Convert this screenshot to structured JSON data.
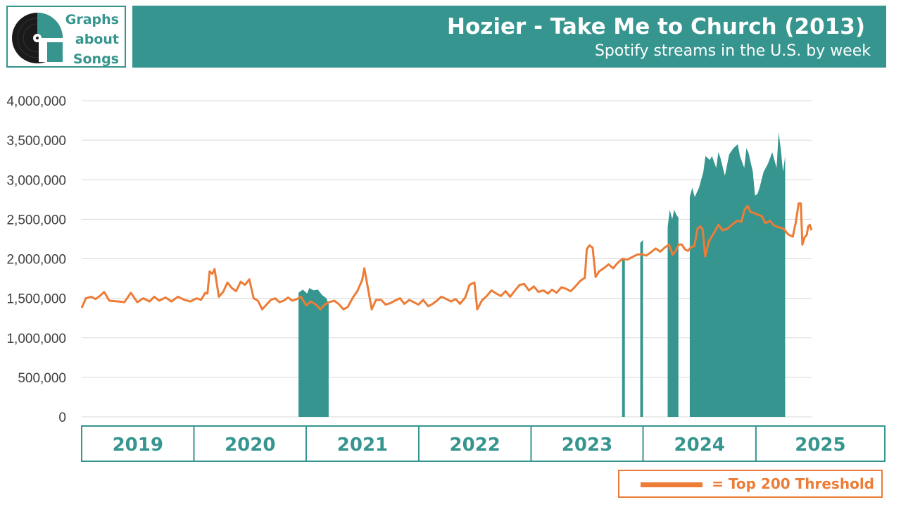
{
  "header": {
    "logo_lines": [
      "Graphs",
      "about",
      "Songs"
    ],
    "title": "Hozier - Take Me to Church (2013)",
    "subtitle": "Spotify streams in the U.S. by week"
  },
  "legend": {
    "label": "= Top 200 Threshold"
  },
  "colors": {
    "teal": "#36958e",
    "orange": "#ec7c36",
    "grid": "#d9d9d9"
  },
  "chart_data": {
    "type": "area",
    "ylim": [
      0,
      4000000
    ],
    "y_ticks": [
      "0",
      "500,000",
      "1,000,000",
      "1,500,000",
      "2,000,000",
      "2,500,000",
      "3,000,000",
      "3,500,000",
      "4,000,000"
    ],
    "y_tick_values": [
      0,
      500000,
      1000000,
      1500000,
      2000000,
      2500000,
      3000000,
      3500000,
      4000000
    ],
    "years": [
      "2019",
      "2020",
      "2021",
      "2022",
      "2023",
      "2024",
      "2025"
    ],
    "year_boundaries": [
      "2019-01-01",
      "2020-01-01",
      "2020-12-31",
      "2022-01-01",
      "2023-01-01",
      "2023-12-31",
      "2025-01-01",
      "2025-07-01"
    ],
    "x_range": [
      "2019-01-01",
      "2025-07-01"
    ],
    "series": [
      {
        "name": "",
        "style": "area",
        "segments": [
          [
            [
              "2020-12-06",
              1570000
            ],
            [
              "2020-12-20",
              1610000
            ],
            [
              "2021-01-03",
              1560000
            ],
            [
              "2021-01-10",
              1630000
            ],
            [
              "2021-01-24",
              1600000
            ],
            [
              "2021-02-07",
              1610000
            ],
            [
              "2021-02-21",
              1540000
            ],
            [
              "2021-03-07",
              1500000
            ],
            [
              "2021-03-14",
              1420000
            ]
          ],
          [
            [
              "2023-10-24",
              2000000
            ],
            [
              "2023-11-02",
              2000000
            ]
          ],
          [
            [
              "2023-12-22",
              2200000
            ],
            [
              "2023-12-31",
              2240000
            ]
          ],
          [
            [
              "2024-03-20",
              2400000
            ],
            [
              "2024-03-27",
              2620000
            ],
            [
              "2024-04-04",
              2500000
            ],
            [
              "2024-04-10",
              2620000
            ],
            [
              "2024-04-17",
              2560000
            ],
            [
              "2024-04-24",
              2520000
            ]
          ],
          [
            [
              "2024-05-31",
              2780000
            ],
            [
              "2024-06-08",
              2900000
            ],
            [
              "2024-06-16",
              2780000
            ],
            [
              "2024-06-30",
              2900000
            ],
            [
              "2024-07-14",
              3100000
            ],
            [
              "2024-07-21",
              3300000
            ],
            [
              "2024-08-04",
              3250000
            ],
            [
              "2024-08-11",
              3300000
            ],
            [
              "2024-08-25",
              3150000
            ],
            [
              "2024-09-01",
              3350000
            ],
            [
              "2024-09-08",
              3270000
            ],
            [
              "2024-09-22",
              3050000
            ],
            [
              "2024-10-06",
              3320000
            ],
            [
              "2024-10-20",
              3400000
            ],
            [
              "2024-11-03",
              3450000
            ],
            [
              "2024-11-10",
              3300000
            ],
            [
              "2024-11-24",
              3150000
            ],
            [
              "2024-12-01",
              3400000
            ],
            [
              "2024-12-08",
              3340000
            ],
            [
              "2024-12-22",
              3100000
            ],
            [
              "2024-12-29",
              2800000
            ],
            [
              "2025-01-06",
              2820000
            ],
            [
              "2025-01-13",
              2900000
            ],
            [
              "2025-01-26",
              3100000
            ],
            [
              "2025-02-09",
              3200000
            ],
            [
              "2025-02-23",
              3350000
            ],
            [
              "2025-03-09",
              3150000
            ],
            [
              "2025-03-16",
              3600000
            ],
            [
              "2025-03-23",
              3380000
            ],
            [
              "2025-03-30",
              3100000
            ],
            [
              "2025-04-06",
              3300000
            ]
          ]
        ]
      },
      {
        "name": "Top 200 Threshold",
        "style": "line",
        "points": [
          [
            "2019-01-01",
            1380000
          ],
          [
            "2019-01-15",
            1500000
          ],
          [
            "2019-02-01",
            1520000
          ],
          [
            "2019-02-15",
            1490000
          ],
          [
            "2019-03-01",
            1530000
          ],
          [
            "2019-03-15",
            1580000
          ],
          [
            "2019-04-01",
            1470000
          ],
          [
            "2019-05-01",
            1460000
          ],
          [
            "2019-05-20",
            1450000
          ],
          [
            "2019-06-10",
            1570000
          ],
          [
            "2019-07-01",
            1450000
          ],
          [
            "2019-07-20",
            1500000
          ],
          [
            "2019-08-10",
            1460000
          ],
          [
            "2019-08-25",
            1520000
          ],
          [
            "2019-09-10",
            1470000
          ],
          [
            "2019-10-01",
            1510000
          ],
          [
            "2019-10-20",
            1460000
          ],
          [
            "2019-11-10",
            1520000
          ],
          [
            "2019-12-01",
            1480000
          ],
          [
            "2019-12-20",
            1460000
          ],
          [
            "2020-01-10",
            1500000
          ],
          [
            "2020-01-24",
            1480000
          ],
          [
            "2020-02-07",
            1570000
          ],
          [
            "2020-02-14",
            1560000
          ],
          [
            "2020-02-21",
            1840000
          ],
          [
            "2020-03-01",
            1810000
          ],
          [
            "2020-03-08",
            1870000
          ],
          [
            "2020-03-22",
            1520000
          ],
          [
            "2020-04-05",
            1580000
          ],
          [
            "2020-04-19",
            1700000
          ],
          [
            "2020-05-03",
            1630000
          ],
          [
            "2020-05-17",
            1590000
          ],
          [
            "2020-06-01",
            1710000
          ],
          [
            "2020-06-15",
            1670000
          ],
          [
            "2020-06-29",
            1740000
          ],
          [
            "2020-07-13",
            1500000
          ],
          [
            "2020-07-27",
            1470000
          ],
          [
            "2020-08-10",
            1360000
          ],
          [
            "2020-08-24",
            1420000
          ],
          [
            "2020-09-07",
            1480000
          ],
          [
            "2020-09-21",
            1500000
          ],
          [
            "2020-10-05",
            1450000
          ],
          [
            "2020-10-19",
            1470000
          ],
          [
            "2020-11-02",
            1510000
          ],
          [
            "2020-11-16",
            1470000
          ],
          [
            "2020-12-01",
            1490000
          ],
          [
            "2020-12-14",
            1520000
          ],
          [
            "2020-12-31",
            1410000
          ],
          [
            "2021-01-15",
            1460000
          ],
          [
            "2021-02-01",
            1420000
          ],
          [
            "2021-02-15",
            1360000
          ],
          [
            "2021-03-01",
            1420000
          ],
          [
            "2021-03-15",
            1450000
          ],
          [
            "2021-04-01",
            1470000
          ],
          [
            "2021-04-15",
            1430000
          ],
          [
            "2021-05-01",
            1360000
          ],
          [
            "2021-05-15",
            1390000
          ],
          [
            "2021-06-01",
            1510000
          ],
          [
            "2021-06-15",
            1590000
          ],
          [
            "2021-07-01",
            1730000
          ],
          [
            "2021-07-08",
            1880000
          ],
          [
            "2021-07-22",
            1580000
          ],
          [
            "2021-08-01",
            1360000
          ],
          [
            "2021-08-15",
            1480000
          ],
          [
            "2021-09-01",
            1480000
          ],
          [
            "2021-09-15",
            1420000
          ],
          [
            "2021-10-01",
            1440000
          ],
          [
            "2021-10-15",
            1470000
          ],
          [
            "2021-11-01",
            1500000
          ],
          [
            "2021-11-15",
            1430000
          ],
          [
            "2021-12-01",
            1480000
          ],
          [
            "2021-12-31",
            1420000
          ],
          [
            "2022-01-15",
            1480000
          ],
          [
            "2022-02-01",
            1400000
          ],
          [
            "2022-02-15",
            1430000
          ],
          [
            "2022-03-01",
            1470000
          ],
          [
            "2022-03-15",
            1520000
          ],
          [
            "2022-04-01",
            1490000
          ],
          [
            "2022-04-15",
            1460000
          ],
          [
            "2022-05-01",
            1490000
          ],
          [
            "2022-05-15",
            1430000
          ],
          [
            "2022-06-01",
            1510000
          ],
          [
            "2022-06-15",
            1670000
          ],
          [
            "2022-07-01",
            1700000
          ],
          [
            "2022-07-10",
            1360000
          ],
          [
            "2022-07-25",
            1470000
          ],
          [
            "2022-08-10",
            1530000
          ],
          [
            "2022-08-25",
            1600000
          ],
          [
            "2022-09-10",
            1560000
          ],
          [
            "2022-09-25",
            1530000
          ],
          [
            "2022-10-10",
            1590000
          ],
          [
            "2022-10-25",
            1520000
          ],
          [
            "2022-11-10",
            1600000
          ],
          [
            "2022-11-25",
            1670000
          ],
          [
            "2022-12-10",
            1680000
          ],
          [
            "2022-12-25",
            1600000
          ],
          [
            "2023-01-10",
            1650000
          ],
          [
            "2023-01-25",
            1580000
          ],
          [
            "2023-02-10",
            1600000
          ],
          [
            "2023-02-25",
            1560000
          ],
          [
            "2023-03-10",
            1610000
          ],
          [
            "2023-03-25",
            1570000
          ],
          [
            "2023-04-10",
            1640000
          ],
          [
            "2023-04-25",
            1620000
          ],
          [
            "2023-05-10",
            1590000
          ],
          [
            "2023-05-25",
            1650000
          ],
          [
            "2023-06-10",
            1720000
          ],
          [
            "2023-06-25",
            1760000
          ],
          [
            "2023-07-01",
            2120000
          ],
          [
            "2023-07-10",
            2170000
          ],
          [
            "2023-07-20",
            2140000
          ],
          [
            "2023-07-30",
            1770000
          ],
          [
            "2023-08-10",
            1840000
          ],
          [
            "2023-08-25",
            1880000
          ],
          [
            "2023-09-10",
            1930000
          ],
          [
            "2023-09-25",
            1880000
          ],
          [
            "2023-10-10",
            1950000
          ],
          [
            "2023-10-25",
            2000000
          ],
          [
            "2023-11-10",
            1990000
          ],
          [
            "2023-11-25",
            2020000
          ],
          [
            "2023-12-10",
            2050000
          ],
          [
            "2023-12-25",
            2060000
          ],
          [
            "2024-01-10",
            2040000
          ],
          [
            "2024-01-25",
            2080000
          ],
          [
            "2024-02-10",
            2130000
          ],
          [
            "2024-02-25",
            2090000
          ],
          [
            "2024-03-10",
            2140000
          ],
          [
            "2024-03-25",
            2180000
          ],
          [
            "2024-04-05",
            2050000
          ],
          [
            "2024-04-15",
            2100000
          ],
          [
            "2024-04-25",
            2180000
          ],
          [
            "2024-05-05",
            2180000
          ],
          [
            "2024-05-15",
            2120000
          ],
          [
            "2024-05-25",
            2100000
          ],
          [
            "2024-06-05",
            2150000
          ],
          [
            "2024-06-15",
            2160000
          ],
          [
            "2024-06-25",
            2380000
          ],
          [
            "2024-07-05",
            2410000
          ],
          [
            "2024-07-12",
            2370000
          ],
          [
            "2024-07-20",
            2030000
          ],
          [
            "2024-08-01",
            2220000
          ],
          [
            "2024-08-15",
            2310000
          ],
          [
            "2024-09-01",
            2430000
          ],
          [
            "2024-09-15",
            2360000
          ],
          [
            "2024-10-01",
            2380000
          ],
          [
            "2024-10-15",
            2430000
          ],
          [
            "2024-11-01",
            2480000
          ],
          [
            "2024-11-15",
            2470000
          ],
          [
            "2024-11-25",
            2620000
          ],
          [
            "2024-12-05",
            2670000
          ],
          [
            "2024-12-15",
            2590000
          ],
          [
            "2024-12-25",
            2580000
          ],
          [
            "2025-01-05",
            2560000
          ],
          [
            "2025-01-20",
            2540000
          ],
          [
            "2025-02-01",
            2450000
          ],
          [
            "2025-02-15",
            2480000
          ],
          [
            "2025-03-01",
            2420000
          ],
          [
            "2025-03-15",
            2400000
          ],
          [
            "2025-04-01",
            2380000
          ],
          [
            "2025-04-15",
            2310000
          ],
          [
            "2025-05-01",
            2280000
          ],
          [
            "2025-05-10",
            2450000
          ],
          [
            "2025-05-20",
            2700000
          ],
          [
            "2025-05-27",
            2700000
          ],
          [
            "2025-06-01",
            2180000
          ],
          [
            "2025-06-08",
            2270000
          ],
          [
            "2025-06-15",
            2300000
          ],
          [
            "2025-06-20",
            2410000
          ],
          [
            "2025-06-25",
            2430000
          ],
          [
            "2025-07-01",
            2360000
          ]
        ]
      }
    ]
  }
}
